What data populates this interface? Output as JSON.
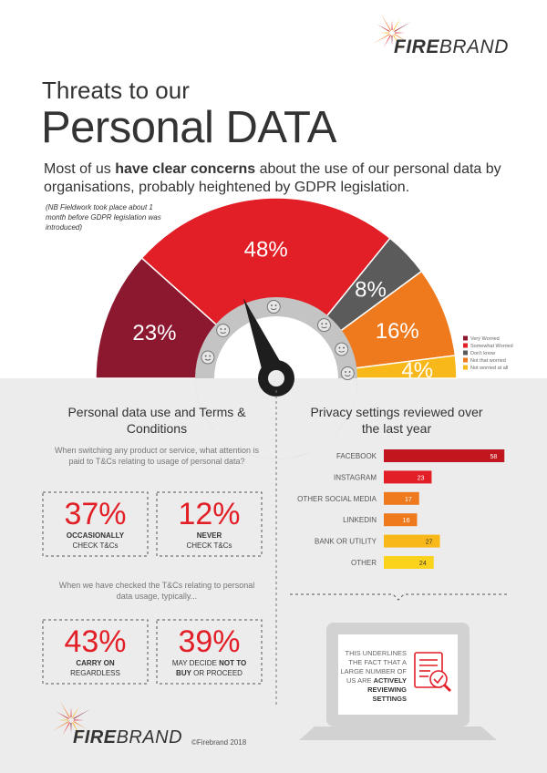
{
  "logo": {
    "fire": "FIRE",
    "brand": "BRAND"
  },
  "header": {
    "kicker": "Threats to our",
    "title": "Personal DATA"
  },
  "intro": {
    "parts": [
      "Most of us ",
      "have clear concerns",
      " about the use of our personal data by organisations, probably heightened by GDPR legislation."
    ]
  },
  "note": "(NB Fieldwork took place about 1 month before GDPR legislation was introduced)",
  "chart_data": [
    {
      "type": "pie",
      "layout": "half",
      "categories": [
        "Very Worried",
        "Somewhat Worried",
        "Don't know",
        "Not that worried",
        "Not worried at all"
      ],
      "values": [
        23,
        48,
        8,
        16,
        4
      ],
      "value_labels": [
        "23%",
        "48%",
        "8%",
        "16%",
        "4%"
      ],
      "colors": [
        "#8c1830",
        "#e21f26",
        "#5b5b5b",
        "#ef7a1e",
        "#f8b81a"
      ],
      "legend": "right"
    },
    {
      "type": "bar",
      "orientation": "horizontal",
      "title": "Privacy settings reviewed over the last year",
      "categories": [
        "FACEBOOK",
        "INSTAGRAM",
        "OTHER SOCIAL MEDIA",
        "LINKEDIN",
        "BANK OR UTILITY",
        "OTHER"
      ],
      "values": [
        58,
        23,
        17,
        16,
        27,
        24
      ],
      "colors": [
        "#c2161f",
        "#e21f26",
        "#ef7a1e",
        "#ef7a1e",
        "#f8b81a",
        "#fbd21c"
      ]
    }
  ],
  "tcs": {
    "title": "Personal data use and Terms & Conditions",
    "question": "When switching any product or service, what attention is paid to T&Cs relating to usage of personal data?",
    "followup": "When we have checked the T&Cs relating to personal data usage, typically...",
    "stats": [
      {
        "value": "37%",
        "parts": [
          "OCCASIONALLY",
          "CHECK T&Cs"
        ]
      },
      {
        "value": "12%",
        "parts": [
          "NEVER",
          "CHECK T&Cs"
        ]
      },
      {
        "value": "43%",
        "parts": [
          "CARRY ON",
          "REGARDLESS"
        ]
      },
      {
        "value": "39%",
        "parts": [
          "MAY DECIDE ",
          "NOT TO",
          "BUY",
          " OR PROCEED"
        ]
      }
    ]
  },
  "callout": {
    "parts": [
      "THIS UNDERLINES THE FACT THAT A LARGE NUMBER OF US ARE ",
      "ACTIVELY REVIEWING SETTINGS"
    ]
  },
  "footer": {
    "copyright": "©Firebrand 2018"
  }
}
